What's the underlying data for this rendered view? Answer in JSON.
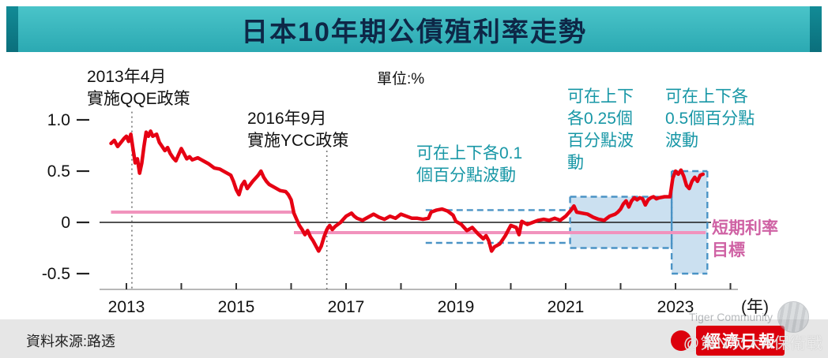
{
  "header": {
    "title": "日本10年期公債殖利率走勢"
  },
  "chart_data": {
    "type": "line",
    "title": "日本10年期公債殖利率走勢",
    "unit_label": "單位:%",
    "colors": {
      "line": "#e60013",
      "target": "#f193bd",
      "band_line": "#4a93c5",
      "band_fill": "rgba(160,198,228,0.55)",
      "title_bar": "#2ba9b2",
      "annotation_teal": "#1897a6",
      "annotation_pink": "#cf62a4"
    },
    "x_axis": {
      "label": "(年)",
      "ticks": [
        2013,
        2014,
        2015,
        2016,
        2017,
        2018,
        2019,
        2020,
        2021,
        2022,
        2023,
        2024
      ],
      "labeled_ticks": [
        2013,
        2015,
        2017,
        2019,
        2021,
        2023
      ],
      "range": [
        2012.7,
        2024.3
      ]
    },
    "y_axis": {
      "ticks": [
        {
          "value": 1.0,
          "label": "1.0"
        },
        {
          "value": 0.5,
          "label": "0.5"
        },
        {
          "value": 0,
          "label": "0"
        },
        {
          "value": -0.5,
          "label": "-0.5"
        }
      ],
      "range": [
        -0.5,
        1.1
      ]
    },
    "events": [
      {
        "x": 2013.1,
        "top": 1.08,
        "label": "2013年4月\n實施QQE政策"
      },
      {
        "x": 2016.65,
        "top": 0.7,
        "label": "2016年9月\n實施YCC政策"
      }
    ],
    "bands": [
      {
        "x_start": 2018.45,
        "x_end": 2021.08,
        "upper": 0.12,
        "lower": -0.2,
        "fill": false,
        "edges": false,
        "label": "可在上下各0.1\n個百分點波動"
      },
      {
        "x_start": 2021.08,
        "x_end": 2022.93,
        "upper": 0.25,
        "lower": -0.25,
        "fill": true,
        "edges": true,
        "label": "可在上下\n各0.25個\n百分點波\n動"
      },
      {
        "x_start": 2022.93,
        "x_end": 2023.58,
        "upper": 0.5,
        "lower": -0.5,
        "fill": true,
        "edges": true,
        "label": "可在上下各\n0.5個百分點\n波動"
      }
    ],
    "series": [
      {
        "name": "日本10年期公債殖利率",
        "color": "#e60013",
        "points": [
          [
            2012.72,
            0.77
          ],
          [
            2012.78,
            0.8
          ],
          [
            2012.84,
            0.74
          ],
          [
            2012.9,
            0.78
          ],
          [
            2012.96,
            0.82
          ],
          [
            2013.0,
            0.84
          ],
          [
            2013.04,
            0.79
          ],
          [
            2013.08,
            0.86
          ],
          [
            2013.12,
            0.72
          ],
          [
            2013.16,
            0.58
          ],
          [
            2013.2,
            0.62
          ],
          [
            2013.24,
            0.48
          ],
          [
            2013.28,
            0.58
          ],
          [
            2013.32,
            0.74
          ],
          [
            2013.36,
            0.88
          ],
          [
            2013.4,
            0.84
          ],
          [
            2013.44,
            0.89
          ],
          [
            2013.48,
            0.84
          ],
          [
            2013.55,
            0.86
          ],
          [
            2013.6,
            0.78
          ],
          [
            2013.65,
            0.74
          ],
          [
            2013.7,
            0.7
          ],
          [
            2013.75,
            0.73
          ],
          [
            2013.8,
            0.67
          ],
          [
            2013.85,
            0.63
          ],
          [
            2013.9,
            0.6
          ],
          [
            2013.95,
            0.66
          ],
          [
            2014.0,
            0.72
          ],
          [
            2014.05,
            0.67
          ],
          [
            2014.1,
            0.62
          ],
          [
            2014.15,
            0.64
          ],
          [
            2014.2,
            0.61
          ],
          [
            2014.3,
            0.63
          ],
          [
            2014.4,
            0.6
          ],
          [
            2014.5,
            0.57
          ],
          [
            2014.6,
            0.53
          ],
          [
            2014.7,
            0.52
          ],
          [
            2014.8,
            0.49
          ],
          [
            2014.9,
            0.46
          ],
          [
            2014.95,
            0.4
          ],
          [
            2015.0,
            0.32
          ],
          [
            2015.05,
            0.27
          ],
          [
            2015.1,
            0.36
          ],
          [
            2015.15,
            0.4
          ],
          [
            2015.2,
            0.33
          ],
          [
            2015.3,
            0.4
          ],
          [
            2015.4,
            0.46
          ],
          [
            2015.45,
            0.5
          ],
          [
            2015.5,
            0.44
          ],
          [
            2015.55,
            0.4
          ],
          [
            2015.6,
            0.37
          ],
          [
            2015.7,
            0.34
          ],
          [
            2015.8,
            0.31
          ],
          [
            2015.9,
            0.3
          ],
          [
            2015.95,
            0.27
          ],
          [
            2016.0,
            0.22
          ],
          [
            2016.05,
            0.09
          ],
          [
            2016.1,
            0.03
          ],
          [
            2016.15,
            -0.03
          ],
          [
            2016.2,
            -0.07
          ],
          [
            2016.25,
            -0.12
          ],
          [
            2016.3,
            -0.08
          ],
          [
            2016.35,
            -0.14
          ],
          [
            2016.4,
            -0.18
          ],
          [
            2016.45,
            -0.23
          ],
          [
            2016.5,
            -0.28
          ],
          [
            2016.55,
            -0.23
          ],
          [
            2016.6,
            -0.14
          ],
          [
            2016.65,
            -0.07
          ],
          [
            2016.7,
            -0.03
          ],
          [
            2016.75,
            -0.07
          ],
          [
            2016.8,
            -0.04
          ],
          [
            2016.9,
            0.0
          ],
          [
            2016.95,
            0.03
          ],
          [
            2017.0,
            0.06
          ],
          [
            2017.1,
            0.09
          ],
          [
            2017.15,
            0.06
          ],
          [
            2017.2,
            0.04
          ],
          [
            2017.3,
            0.02
          ],
          [
            2017.4,
            0.05
          ],
          [
            2017.5,
            0.08
          ],
          [
            2017.6,
            0.05
          ],
          [
            2017.7,
            0.03
          ],
          [
            2017.8,
            0.06
          ],
          [
            2017.9,
            0.04
          ],
          [
            2018.0,
            0.08
          ],
          [
            2018.1,
            0.06
          ],
          [
            2018.2,
            0.04
          ],
          [
            2018.3,
            0.04
          ],
          [
            2018.4,
            0.03
          ],
          [
            2018.5,
            0.04
          ],
          [
            2018.55,
            0.1
          ],
          [
            2018.65,
            0.12
          ],
          [
            2018.75,
            0.13
          ],
          [
            2018.85,
            0.11
          ],
          [
            2018.95,
            0.07
          ],
          [
            2019.0,
            0.01
          ],
          [
            2019.1,
            -0.02
          ],
          [
            2019.2,
            -0.08
          ],
          [
            2019.3,
            -0.05
          ],
          [
            2019.4,
            -0.11
          ],
          [
            2019.5,
            -0.16
          ],
          [
            2019.55,
            -0.13
          ],
          [
            2019.6,
            -0.18
          ],
          [
            2019.65,
            -0.28
          ],
          [
            2019.7,
            -0.24
          ],
          [
            2019.8,
            -0.21
          ],
          [
            2019.9,
            -0.13
          ],
          [
            2019.95,
            -0.08
          ],
          [
            2020.0,
            -0.03
          ],
          [
            2020.1,
            -0.05
          ],
          [
            2020.15,
            -0.12
          ],
          [
            2020.2,
            0.01
          ],
          [
            2020.3,
            -0.02
          ],
          [
            2020.4,
            0.0
          ],
          [
            2020.5,
            0.02
          ],
          [
            2020.6,
            0.03
          ],
          [
            2020.7,
            0.02
          ],
          [
            2020.8,
            0.04
          ],
          [
            2020.9,
            0.02
          ],
          [
            2020.95,
            0.04
          ],
          [
            2021.0,
            0.06
          ],
          [
            2021.1,
            0.12
          ],
          [
            2021.15,
            0.16
          ],
          [
            2021.2,
            0.1
          ],
          [
            2021.3,
            0.09
          ],
          [
            2021.4,
            0.08
          ],
          [
            2021.5,
            0.05
          ],
          [
            2021.6,
            0.03
          ],
          [
            2021.7,
            0.02
          ],
          [
            2021.8,
            0.06
          ],
          [
            2021.9,
            0.08
          ],
          [
            2021.95,
            0.1
          ],
          [
            2022.0,
            0.13
          ],
          [
            2022.05,
            0.18
          ],
          [
            2022.1,
            0.21
          ],
          [
            2022.15,
            0.15
          ],
          [
            2022.2,
            0.21
          ],
          [
            2022.25,
            0.24
          ],
          [
            2022.3,
            0.22
          ],
          [
            2022.35,
            0.24
          ],
          [
            2022.4,
            0.23
          ],
          [
            2022.45,
            0.17
          ],
          [
            2022.5,
            0.22
          ],
          [
            2022.55,
            0.24
          ],
          [
            2022.6,
            0.25
          ],
          [
            2022.65,
            0.23
          ],
          [
            2022.7,
            0.24
          ],
          [
            2022.8,
            0.25
          ],
          [
            2022.9,
            0.25
          ],
          [
            2022.95,
            0.43
          ],
          [
            2023.0,
            0.5
          ],
          [
            2023.05,
            0.47
          ],
          [
            2023.1,
            0.51
          ],
          [
            2023.15,
            0.45
          ],
          [
            2023.2,
            0.36
          ],
          [
            2023.25,
            0.33
          ],
          [
            2023.3,
            0.4
          ],
          [
            2023.35,
            0.44
          ],
          [
            2023.4,
            0.4
          ],
          [
            2023.45,
            0.46
          ],
          [
            2023.5,
            0.47
          ]
        ]
      },
      {
        "name": "短期利率目標",
        "label": "短期利率\n目標",
        "color": "#f193bd",
        "segments": [
          [
            [
              2012.72,
              0.1
            ],
            [
              2016.05,
              0.1
            ]
          ],
          [
            [
              2016.05,
              -0.1
            ],
            [
              2023.55,
              -0.1
            ]
          ]
        ]
      }
    ]
  },
  "footer": {
    "source": "資料來源:路透",
    "publisher": "經濟日報"
  },
  "watermarks": {
    "community": "Tiger Community",
    "handle": "@第N次大A保衛戰"
  }
}
